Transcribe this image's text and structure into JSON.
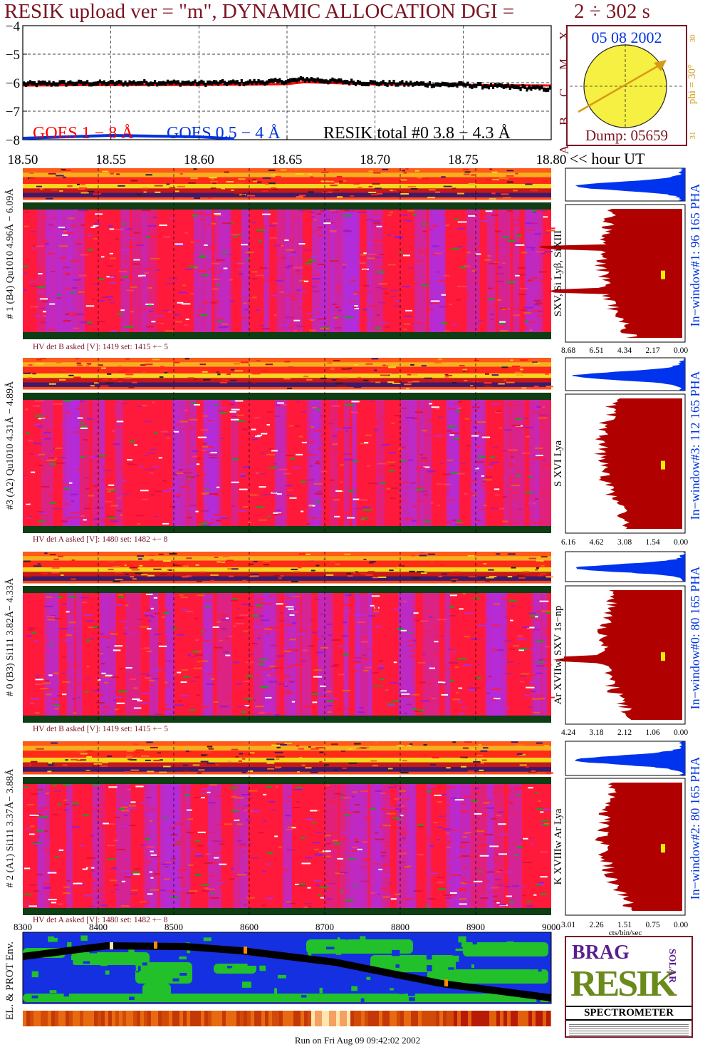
{
  "header": {
    "title": "RESIK upload ver = \"m\", DYNAMIC ALLOCATION  DGI =",
    "dgi": "2 ÷ 302 s"
  },
  "colors": {
    "title": "#7a1422",
    "goes_long": "#ff0000",
    "goes_short": "#0033dd",
    "resik_total": "#000000",
    "pha": "#0033ee",
    "spectrum_fill": "#b00000",
    "sun": "#f6f042",
    "sun_axis": "#d69a16"
  },
  "lightcurve": {
    "y_ticks": [
      "−4",
      "−5",
      "−6",
      "−7",
      "−8"
    ],
    "class_labels": [
      "X",
      "M",
      "C",
      "B",
      "A"
    ],
    "legend": {
      "goes_long": "GOES 1 − 8 Å",
      "goes_short": "GOES 0.5 − 4 Å",
      "resik_total": "RESIK total #0  3.8 − 4.3 Å"
    },
    "x_ticks": [
      "18.50",
      "18.55",
      "18.60",
      "18.65",
      "18.70",
      "18.75",
      "18.80"
    ],
    "x_suffix": "<< hour UT"
  },
  "sun_panel": {
    "date": "05 08 2002",
    "phi_label": "phi = 30°",
    "tick_top": "30",
    "tick_bottom": "31",
    "dump": "Dump: 05659"
  },
  "detectors": [
    {
      "id": "det1",
      "label": "# 1 (B4) Qu1010 4.96Å − 6.09Å",
      "hv": "HV det B asked [V]:  1419 set:  1415  +−    5",
      "line_label": "SXV, Si Lyβ, SiXIII",
      "window_label": "In−window#1:   96 165 PHA",
      "scale": [
        "8.68",
        "6.51",
        "4.34",
        "2.17",
        "0.00"
      ]
    },
    {
      "id": "det3",
      "label": "#3 (A2) Qu1010  4.31Å − 4.89Å",
      "hv": "HV det A asked [V]:  1480 set:  1482  +−    8",
      "line_label": "S XVI Lya",
      "window_label": "In−window#3:  112 165 PHA",
      "scale": [
        "6.16",
        "4.62",
        "3.08",
        "1.54",
        "0.00"
      ]
    },
    {
      "id": "det0",
      "label": "# 0 (B3) Si111  3.82Å− 4.33Å",
      "hv": "HV det B asked [V]:  1419 set:  1415  +−    5",
      "line_label": "Ar XVIIw,  SXV 1s−np",
      "window_label": "In−window#0:   80 165 PHA",
      "scale": [
        "4.24",
        "3.18",
        "2.12",
        "1.06",
        "0.00"
      ]
    },
    {
      "id": "det2",
      "label": "# 2 (A1) Si111  3.37Å− 3.88Å",
      "hv": "HV det A asked [V]:  1480 set:  1482  +−    8",
      "line_label": "K XVIIIw  Ar Lya",
      "window_label": "In−window#2:   80 165 PHA",
      "scale": [
        "3.01",
        "2.26",
        "1.51",
        "0.75",
        "0.00"
      ]
    }
  ],
  "spectrum_unit": "cts/bin/sec",
  "orbit": {
    "x_ticks": [
      "8300",
      "8400",
      "8500",
      "8600",
      "8700",
      "8800",
      "8900",
      "9000"
    ],
    "side_label": "EL. & PROT Env."
  },
  "logo": {
    "top_letters": "BRAG",
    "main": "RESIK",
    "side": "SOLAR",
    "bottom": "SPECTROMETER"
  },
  "footer": "Run on Fri Aug 09 09:42:02 2002",
  "chart_data": {
    "type": "line",
    "title": "RESIK upload ver = \"m\", DYNAMIC ALLOCATION  DGI =  2 ÷ 302 s",
    "xlabel": "hour UT",
    "ylabel": "",
    "xlim": [
      18.5,
      18.8
    ],
    "ylim": [
      -8,
      -4
    ],
    "grid": true,
    "series": [
      {
        "name": "RESIK total #0  3.8 − 4.3 Å",
        "x": [
          18.5,
          18.525,
          18.55,
          18.575,
          18.6,
          18.625,
          18.65,
          18.66,
          18.675,
          18.7,
          18.725,
          18.75,
          18.775,
          18.8
        ],
        "values": [
          -6.05,
          -6.02,
          -6.02,
          -6.0,
          -6.02,
          -6.0,
          -5.95,
          -5.88,
          -5.95,
          -6.02,
          -6.05,
          -6.08,
          -6.15,
          -6.22
        ]
      },
      {
        "name": "GOES 1 − 8 Å",
        "x": [
          18.5,
          18.55,
          18.6,
          18.65,
          18.66,
          18.7,
          18.75,
          18.8
        ],
        "values": [
          -6.1,
          -6.08,
          -6.08,
          -6.05,
          -5.98,
          -6.06,
          -6.08,
          -6.1
        ]
      },
      {
        "name": "GOES 0.5 − 4 Å",
        "x": [
          18.5,
          18.55,
          18.6,
          18.62
        ],
        "values": [
          -7.95,
          -7.85,
          -7.9,
          -7.97
        ]
      }
    ]
  }
}
